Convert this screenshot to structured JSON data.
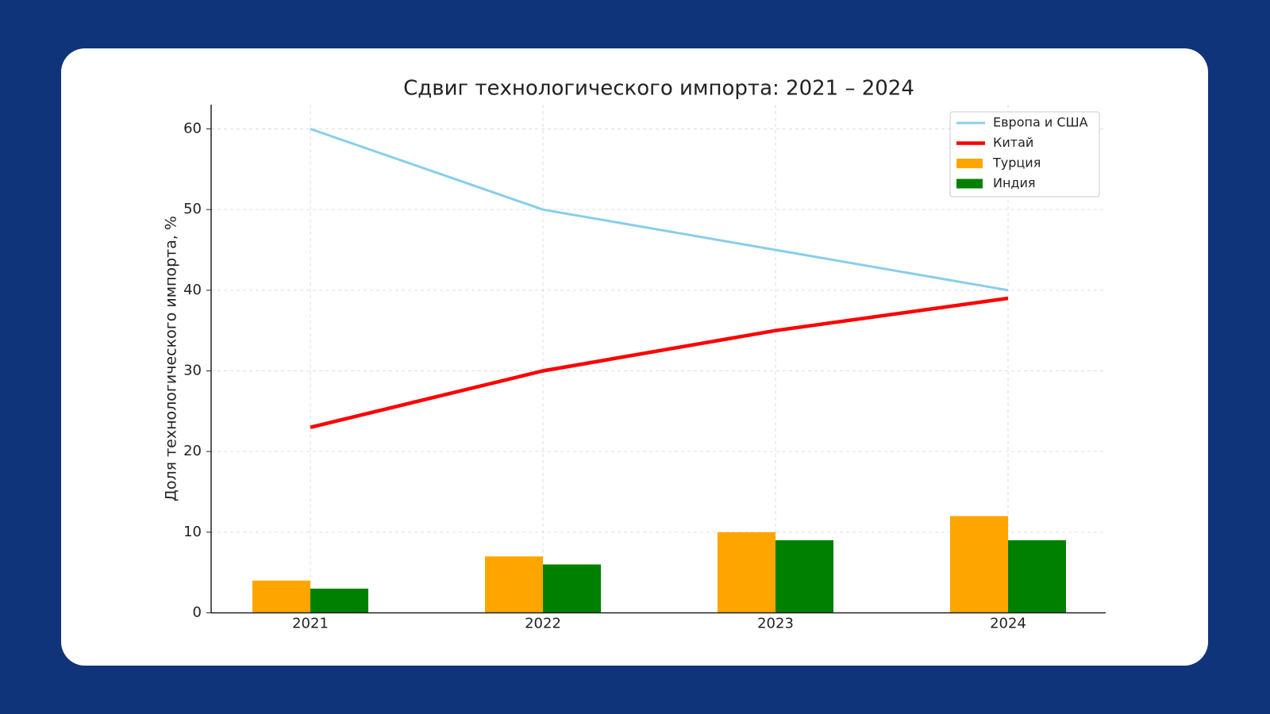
{
  "chart_data": {
    "type": "combo",
    "title": "Сдвиг технологического импорта: 2021 – 2024",
    "y_label": "Доля технологического импорта, %",
    "categories": [
      "2021",
      "2022",
      "2023",
      "2024"
    ],
    "series": [
      {
        "name": "Европа и США",
        "type": "line",
        "color": "#87ceeb",
        "values": [
          60,
          50,
          45,
          40
        ]
      },
      {
        "name": "Китай",
        "type": "line",
        "color": "#ff0000",
        "values": [
          23,
          30,
          35,
          39
        ]
      },
      {
        "name": "Турция",
        "type": "bar",
        "color": "#ffa500",
        "values": [
          4,
          7,
          10,
          12
        ]
      },
      {
        "name": "Индия",
        "type": "bar",
        "color": "#008000",
        "values": [
          3,
          6,
          9,
          9
        ]
      }
    ],
    "ylim": [
      0,
      63
    ],
    "yticks": [
      0,
      10,
      20,
      30,
      40,
      50,
      60
    ],
    "grid": true,
    "legend": "upper-right"
  }
}
